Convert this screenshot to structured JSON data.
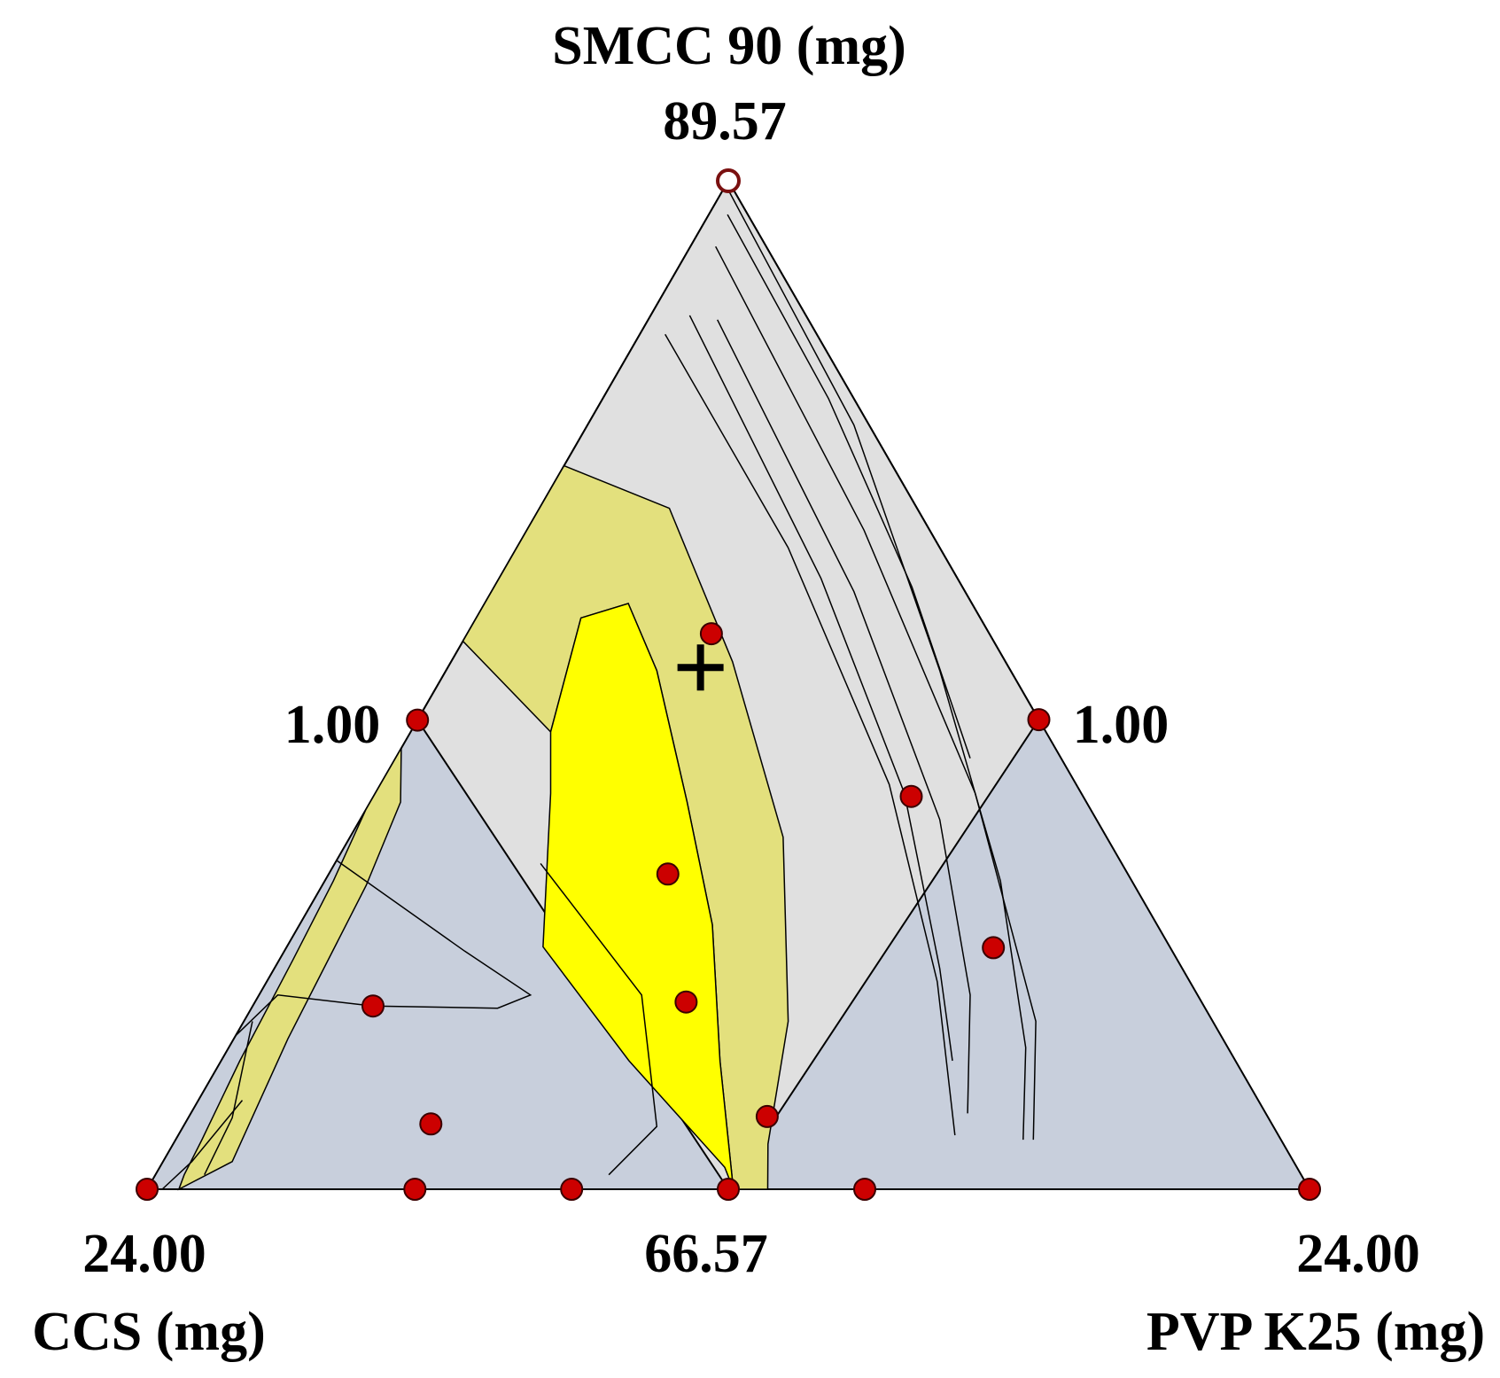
{
  "chart_data": {
    "type": "ternary",
    "axes": {
      "top": {
        "label": "SMCC 90 (mg)",
        "apex_value": "89.57"
      },
      "left": {
        "label": "CCS (mg)",
        "apex_value": "24.00"
      },
      "right": {
        "label": "PVP K25 (mg)",
        "apex_value": "24.00"
      },
      "bottom_edge_value": "66.57",
      "left_edge_value": "1.00",
      "right_edge_value": "1.00"
    },
    "design_points": [
      {
        "ccs": 0.0,
        "smcc": 89.57,
        "pvp": 0.0,
        "style": "open"
      },
      {
        "ccs": 0.0,
        "smcc": 77.28,
        "pvp": 12.29
      },
      {
        "ccs": 0.0,
        "smcc": 66.57,
        "pvp": 23.0
      },
      {
        "ccs": 5.5,
        "smcc": 79.24,
        "pvp": 4.83
      },
      {
        "ccs": 12.3,
        "smcc": 77.27,
        "pvp": 0.0
      },
      {
        "ccs": 3.4,
        "smcc": 75.53,
        "pvp": 10.64
      },
      {
        "ccs": 9.1,
        "smcc": 73.76,
        "pvp": 6.71
      },
      {
        "ccs": 3.5,
        "smcc": 72.08,
        "pvp": 13.99
      },
      {
        "ccs": 16.44,
        "smcc": 70.75,
        "pvp": 2.38
      },
      {
        "ccs": 10.2,
        "smcc": 70.84,
        "pvp": 8.53
      },
      {
        "ccs": 23.0,
        "smcc": 66.57,
        "pvp": 0.0
      },
      {
        "ccs": 9.9,
        "smcc": 68.23,
        "pvp": 11.44
      },
      {
        "ccs": 16.64,
        "smcc": 68.06,
        "pvp": 4.87
      },
      {
        "ccs": 8.8,
        "smcc": 66.57,
        "pvp": 14.2
      },
      {
        "ccs": 17.7,
        "smcc": 66.57,
        "pvp": 5.3
      },
      {
        "ccs": 14.6,
        "smcc": 66.57,
        "pvp": 8.4
      },
      {
        "ccs": 11.5,
        "smcc": 66.57,
        "pvp": 11.5
      }
    ],
    "optimum": {
      "ccs": 6.1,
      "smcc": 78.47,
      "pvp": 5.0,
      "marker": "plus"
    },
    "colors": {
      "design_space": "#e0e0e0",
      "excluded": "#c8cfdc",
      "optimal_region": "#ffff00",
      "interval_band": "#e3e07d",
      "point": "#cc0000",
      "contour": "#000000"
    },
    "bands": [
      [
        {
          "ccs": 13.57,
          "smcc": 75.4,
          "pvp": 0.6
        },
        {
          "ccs": 15.2,
          "smcc": 73.5,
          "pvp": 0.87
        },
        {
          "ccs": 18.5,
          "smcc": 70.0,
          "pvp": 1.07
        },
        {
          "ccs": 21.0,
          "smcc": 67.2,
          "pvp": 1.37
        },
        {
          "ccs": 22.37,
          "smcc": 66.57,
          "pvp": 0.63
        },
        {
          "ccs": 22.1,
          "smcc": 66.9,
          "pvp": 0.57
        },
        {
          "ccs": 21.35,
          "smcc": 67.7,
          "pvp": 0.52
        },
        {
          "ccs": 19.7,
          "smcc": 69.5,
          "pvp": 0.37
        },
        {
          "ccs": 17.5,
          "smcc": 71.8,
          "pvp": 0.27
        },
        {
          "ccs": 15.8,
          "smcc": 73.6,
          "pvp": 0.17
        },
        {
          "ccs": 14.34,
          "smcc": 75.23,
          "pvp": 0.0
        },
        {
          "ccs": 12.94,
          "smcc": 76.63,
          "pvp": 0.0
        }
      ],
      [
        {
          "ccs": 6.5,
          "smcc": 83.07,
          "pvp": 0.0
        },
        {
          "ccs": 4.9,
          "smcc": 82.1,
          "pvp": 2.57
        },
        {
          "ccs": 5.4,
          "smcc": 78.6,
          "pvp": 5.57
        },
        {
          "ccs": 6.4,
          "smcc": 74.6,
          "pvp": 8.57
        },
        {
          "ccs": 8.4,
          "smcc": 70.4,
          "pvp": 10.77
        },
        {
          "ccs": 10.2,
          "smcc": 67.6,
          "pvp": 11.77
        },
        {
          "ccs": 10.72,
          "smcc": 66.57,
          "pvp": 12.28
        },
        {
          "ccs": 11.4,
          "smcc": 66.57,
          "pvp": 11.6
        },
        {
          "ccs": 10.2,
          "smcc": 69.5,
          "pvp": 9.87
        },
        {
          "ccs": 8.8,
          "smcc": 72.6,
          "pvp": 8.17
        },
        {
          "ccs": 7.9,
          "smcc": 75.4,
          "pvp": 6.27
        },
        {
          "ccs": 7.0,
          "smcc": 78.4,
          "pvp": 4.17
        },
        {
          "ccs": 6.8,
          "smcc": 79.93,
          "pvp": 2.84
        },
        {
          "ccs": 7.9,
          "smcc": 79.6,
          "pvp": 2.07
        },
        {
          "ccs": 9.8,
          "smcc": 77.0,
          "pvp": 2.77
        },
        {
          "ccs": 10.5,
          "smcc": 79.07,
          "pvp": 0.0
        }
      ]
    ],
    "optimal_region": [
      {
        "ccs": 6.8,
        "smcc": 79.93,
        "pvp": 2.84
      },
      {
        "ccs": 7.0,
        "smcc": 78.4,
        "pvp": 4.17
      },
      {
        "ccs": 7.9,
        "smcc": 75.4,
        "pvp": 6.27
      },
      {
        "ccs": 8.8,
        "smcc": 72.6,
        "pvp": 8.17
      },
      {
        "ccs": 10.2,
        "smcc": 69.5,
        "pvp": 9.87
      },
      {
        "ccs": 11.4,
        "smcc": 66.57,
        "pvp": 11.6
      },
      {
        "ccs": 11.32,
        "smcc": 67.07,
        "pvp": 11.18
      },
      {
        "ccs": 12.0,
        "smcc": 69.5,
        "pvp": 8.07
      },
      {
        "ccs": 12.4,
        "smcc": 72.1,
        "pvp": 5.07
      },
      {
        "ccs": 10.5,
        "smcc": 75.6,
        "pvp": 3.47
      },
      {
        "ccs": 9.8,
        "smcc": 77.0,
        "pvp": 2.77
      },
      {
        "ccs": 7.9,
        "smcc": 79.6,
        "pvp": 2.07
      }
    ],
    "contours": [
      [
        {
          "ccs": 15.5,
          "smcc": 74.07,
          "pvp": 0.0
        },
        {
          "ccs": 14.0,
          "smcc": 72.0,
          "pvp": 3.57
        },
        {
          "ccs": 13.2,
          "smcc": 71.0,
          "pvp": 5.37
        },
        {
          "ccs": 14.0,
          "smcc": 70.7,
          "pvp": 4.87
        },
        {
          "ccs": 16.44,
          "smcc": 70.75,
          "pvp": 2.38
        }
      ],
      [
        {
          "ccs": 19.5,
          "smcc": 70.07,
          "pvp": 0.0
        },
        {
          "ccs": 18.2,
          "smcc": 71.0,
          "pvp": 0.37
        },
        {
          "ccs": 16.44,
          "smcc": 70.75,
          "pvp": 2.38
        }
      ],
      [
        {
          "ccs": 11.5,
          "smcc": 74.0,
          "pvp": 4.07
        },
        {
          "ccs": 11.0,
          "smcc": 71.0,
          "pvp": 7.57
        },
        {
          "ccs": 12.2,
          "smcc": 68.0,
          "pvp": 9.37
        },
        {
          "ccs": 13.7,
          "smcc": 66.9,
          "pvp": 8.97
        }
      ],
      [
        {
          "ccs": 20.1,
          "smcc": 68.6,
          "pvp": 0.87
        },
        {
          "ccs": 21.8,
          "smcc": 67.2,
          "pvp": 0.57
        },
        {
          "ccs": 22.7,
          "smcc": 66.57,
          "pvp": 0.3
        }
      ],
      [
        {
          "ccs": 19.0,
          "smcc": 70.4,
          "pvp": 0.17
        },
        {
          "ccs": 20.5,
          "smcc": 68.2,
          "pvp": 0.87
        },
        {
          "ccs": 21.7,
          "smcc": 66.9,
          "pvp": 0.97
        }
      ],
      [
        {
          "ccs": 3.0,
          "smcc": 86.07,
          "pvp": 0.5
        },
        {
          "ccs": 3.0,
          "smcc": 81.2,
          "pvp": 5.37
        },
        {
          "ccs": 3.7,
          "smcc": 75.8,
          "pvp": 10.07
        },
        {
          "ccs": 5.0,
          "smcc": 71.3,
          "pvp": 13.27
        },
        {
          "ccs": 6.4,
          "smcc": 67.8,
          "pvp": 15.37
        }
      ],
      [
        {
          "ccs": 1.0,
          "smcc": 88.07,
          "pvp": 0.5
        },
        {
          "ccs": 1.3,
          "smcc": 81.6,
          "pvp": 6.67
        },
        {
          "ccs": 2.1,
          "smcc": 75.6,
          "pvp": 11.87
        },
        {
          "ccs": 3.5,
          "smcc": 70.4,
          "pvp": 15.67
        },
        {
          "ccs": 4.9,
          "smcc": 67.7,
          "pvp": 16.97
        }
      ],
      [
        {
          "ccs": 0.1,
          "smcc": 89.47,
          "pvp": 0.0
        },
        {
          "ccs": 0.3,
          "smcc": 84.0,
          "pvp": 5.27
        },
        {
          "ccs": 1.4,
          "smcc": 78.4,
          "pvp": 9.77
        },
        {
          "ccs": 2.6,
          "smcc": 73.6,
          "pvp": 13.37
        },
        {
          "ccs": 4.0,
          "smcc": 69.8,
          "pvp": 15.77
        },
        {
          "ccs": 5.1,
          "smcc": 67.7,
          "pvp": 16.77
        }
      ],
      [
        {
          "ccs": 1.8,
          "smcc": 86.4,
          "pvp": 1.37
        },
        {
          "ccs": 2.2,
          "smcc": 80.2,
          "pvp": 7.17
        },
        {
          "ccs": 3.1,
          "smcc": 75.0,
          "pvp": 11.47
        },
        {
          "ccs": 4.5,
          "smcc": 71.0,
          "pvp": 14.07
        },
        {
          "ccs": 5.9,
          "smcc": 68.3,
          "pvp": 15.37
        }
      ],
      [
        {
          "ccs": 2.3,
          "smcc": 86.5,
          "pvp": 0.77
        },
        {
          "ccs": 2.7,
          "smcc": 80.5,
          "pvp": 6.37
        },
        {
          "ccs": 3.5,
          "smcc": 75.6,
          "pvp": 10.47
        },
        {
          "ccs": 4.8,
          "smcc": 71.6,
          "pvp": 13.17
        },
        {
          "ccs": 5.6,
          "smcc": 69.5,
          "pvp": 14.47
        }
      ],
      [
        {
          "ccs": 0.4,
          "smcc": 88.8,
          "pvp": 0.37
        },
        {
          "ccs": 0.5,
          "smcc": 84.6,
          "pvp": 4.47
        },
        {
          "ccs": 1.0,
          "smcc": 80.3,
          "pvp": 8.27
        },
        {
          "ccs": 1.8,
          "smcc": 76.4,
          "pvp": 11.37
        }
      ]
    ]
  }
}
